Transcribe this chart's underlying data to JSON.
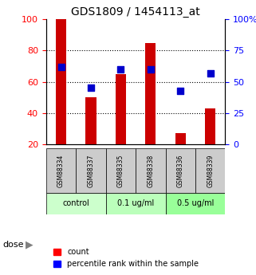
{
  "title": "GDS1809 / 1454113_at",
  "samples": [
    "GSM88334",
    "GSM88337",
    "GSM88335",
    "GSM88338",
    "GSM88336",
    "GSM88339"
  ],
  "groups": [
    "control",
    "control",
    "0.1 ug/ml",
    "0.1 ug/ml",
    "0.5 ug/ml",
    "0.5 ug/ml"
  ],
  "group_labels": [
    "control",
    "0.1 ug/ml",
    "0.5 ug/ml"
  ],
  "group_colors": [
    "#ccffcc",
    "#aaffaa",
    "#66ff66"
  ],
  "bar_values": [
    100,
    50,
    65,
    85,
    27,
    43
  ],
  "dot_values": [
    62,
    45,
    60,
    60,
    43,
    57
  ],
  "bar_color": "#cc0000",
  "dot_color": "#0000cc",
  "ylim_left": [
    20,
    100
  ],
  "ylim_right": [
    0,
    100
  ],
  "yticks_left": [
    20,
    40,
    60,
    80,
    100
  ],
  "yticks_right": [
    0,
    25,
    50,
    75,
    100
  ],
  "ytick_labels_right": [
    "0",
    "25",
    "50",
    "75",
    "100%"
  ],
  "grid_color": "#000000",
  "grid_style": "dotted",
  "bg_color": "#ffffff",
  "plot_bg": "#ffffff",
  "label_area_bg": "#cccccc",
  "group_bg_colors": [
    "#ccffcc",
    "#bbffbb",
    "#99ff99"
  ],
  "xlabel": "dose",
  "legend_count": "count",
  "legend_pct": "percentile rank within the sample"
}
